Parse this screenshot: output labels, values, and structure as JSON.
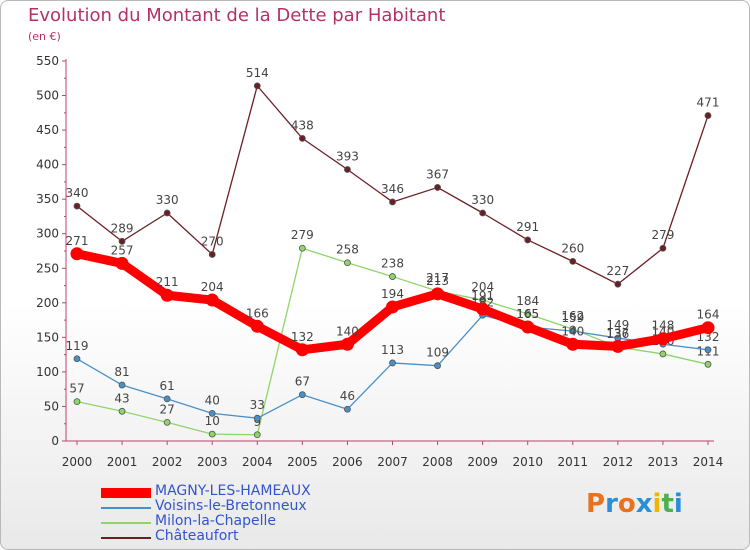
{
  "title": "Evolution du Montant de la Dette par Habitant",
  "unit_label": "(en €)",
  "logo": {
    "text": "Proxiti",
    "letters": [
      "P",
      "r",
      "o",
      "x",
      "i",
      "t",
      "i"
    ],
    "letter_colors": [
      "#e8731c",
      "#2a8fd6",
      "#e8731c",
      "#2a8fd6",
      "#f2b400",
      "#4caf50",
      "#2a8fd6"
    ]
  },
  "chart_data": {
    "type": "line",
    "x": [
      "2000",
      "2001",
      "2002",
      "2003",
      "2004",
      "2005",
      "2006",
      "2007",
      "2008",
      "2009",
      "2010",
      "2011",
      "2012",
      "2013",
      "2014"
    ],
    "ylim": [
      0,
      550
    ],
    "yticks": [
      0,
      50,
      100,
      150,
      200,
      250,
      300,
      350,
      400,
      450,
      500,
      550
    ],
    "grid": false,
    "series": [
      {
        "name": "MAGNY-LES-HAMEAUX",
        "color": "#ff0000",
        "values": [
          271,
          257,
          211,
          204,
          166,
          132,
          140,
          194,
          213,
          191,
          165,
          140,
          137,
          148,
          164
        ]
      },
      {
        "name": "Voisins-le-Bretonneux",
        "color": "#4a90c8",
        "values": [
          119,
          81,
          61,
          40,
          33,
          67,
          46,
          113,
          109,
          182,
          165,
          159,
          149,
          140,
          132
        ]
      },
      {
        "name": "Milon-la-Chapelle",
        "color": "#8fd46a",
        "values": [
          57,
          43,
          27,
          10,
          9,
          279,
          258,
          238,
          217,
          204,
          184,
          162,
          136,
          126,
          111
        ]
      },
      {
        "name": "Châteaufort",
        "color": "#6b1f24",
        "values": [
          340,
          289,
          330,
          270,
          514,
          438,
          393,
          346,
          367,
          330,
          291,
          260,
          227,
          279,
          471
        ]
      }
    ]
  }
}
